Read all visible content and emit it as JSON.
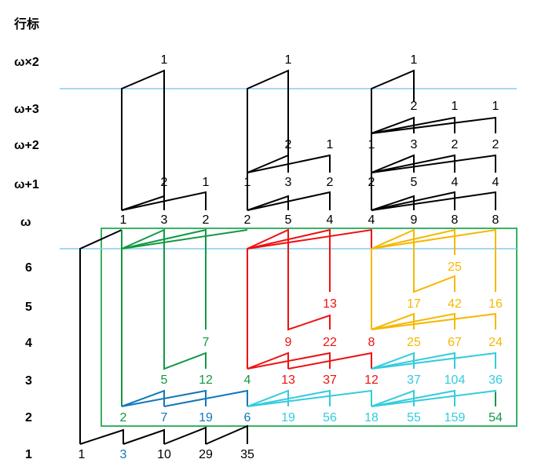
{
  "header": "行标",
  "rows": [
    "ω×2",
    "ω+3",
    "ω+2",
    "ω+1",
    "ω",
    "6",
    "5",
    "4",
    "3",
    "2",
    "1"
  ],
  "colors": {
    "black": "#000000",
    "green": "#119944",
    "red": "#ee1111",
    "orange": "#f5b800",
    "cyan": "#33ccdd",
    "blue": "#1177bb",
    "separator": "#88ccee",
    "frame": "#22aa55"
  },
  "numbers": [
    {
      "text": "1",
      "color": "black"
    },
    {
      "text": "1",
      "color": "black"
    },
    {
      "text": "1",
      "color": "black"
    },
    {
      "text": "2",
      "color": "black"
    },
    {
      "text": "1",
      "color": "black"
    },
    {
      "text": "1",
      "color": "black"
    },
    {
      "text": "2",
      "color": "black"
    },
    {
      "text": "1",
      "color": "black"
    },
    {
      "text": "1",
      "color": "black"
    },
    {
      "text": "3",
      "color": "black"
    },
    {
      "text": "2",
      "color": "black"
    },
    {
      "text": "2",
      "color": "black"
    },
    {
      "text": "2",
      "color": "black"
    },
    {
      "text": "1",
      "color": "black"
    },
    {
      "text": "1",
      "color": "black"
    },
    {
      "text": "3",
      "color": "black"
    },
    {
      "text": "2",
      "color": "black"
    },
    {
      "text": "2",
      "color": "black"
    },
    {
      "text": "5",
      "color": "black"
    },
    {
      "text": "4",
      "color": "black"
    },
    {
      "text": "4",
      "color": "black"
    },
    {
      "text": "1",
      "color": "black"
    },
    {
      "text": "3",
      "color": "black"
    },
    {
      "text": "2",
      "color": "black"
    },
    {
      "text": "2",
      "color": "black"
    },
    {
      "text": "5",
      "color": "black"
    },
    {
      "text": "4",
      "color": "black"
    },
    {
      "text": "4",
      "color": "black"
    },
    {
      "text": "9",
      "color": "black"
    },
    {
      "text": "8",
      "color": "black"
    },
    {
      "text": "8",
      "color": "black"
    },
    {
      "text": "25",
      "color": "orange"
    },
    {
      "text": "13",
      "color": "red"
    },
    {
      "text": "17",
      "color": "orange"
    },
    {
      "text": "42",
      "color": "orange"
    },
    {
      "text": "16",
      "color": "orange"
    },
    {
      "text": "7",
      "color": "green"
    },
    {
      "text": "9",
      "color": "red"
    },
    {
      "text": "22",
      "color": "red"
    },
    {
      "text": "8",
      "color": "red"
    },
    {
      "text": "25",
      "color": "orange"
    },
    {
      "text": "67",
      "color": "orange"
    },
    {
      "text": "24",
      "color": "orange"
    },
    {
      "text": "5",
      "color": "green"
    },
    {
      "text": "12",
      "color": "green"
    },
    {
      "text": "4",
      "color": "green"
    },
    {
      "text": "13",
      "color": "red"
    },
    {
      "text": "37",
      "color": "red"
    },
    {
      "text": "12",
      "color": "red"
    },
    {
      "text": "37",
      "color": "cyan"
    },
    {
      "text": "104",
      "color": "cyan"
    },
    {
      "text": "36",
      "color": "cyan"
    },
    {
      "text": "2",
      "color": "green"
    },
    {
      "text": "7",
      "color": "blue"
    },
    {
      "text": "19",
      "color": "blue"
    },
    {
      "text": "6",
      "color": "blue"
    },
    {
      "text": "19",
      "color": "cyan"
    },
    {
      "text": "56",
      "color": "cyan"
    },
    {
      "text": "18",
      "color": "cyan"
    },
    {
      "text": "55",
      "color": "cyan"
    },
    {
      "text": "159",
      "color": "cyan"
    },
    {
      "text": "54",
      "color": "green"
    },
    {
      "text": "1",
      "color": "black"
    },
    {
      "text": "3",
      "color": "blue"
    },
    {
      "text": "10",
      "color": "black"
    },
    {
      "text": "29",
      "color": "black"
    },
    {
      "text": "35",
      "color": "black"
    }
  ]
}
